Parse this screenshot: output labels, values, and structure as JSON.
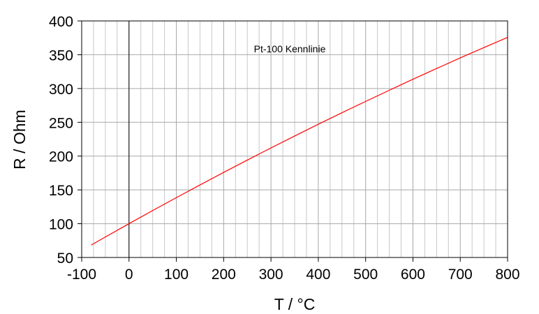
{
  "chart_data": {
    "type": "line",
    "title": "Pt-100 Kennlinie",
    "xlabel": "T / °C",
    "ylabel": "R / Ohm",
    "xlim": [
      -100,
      800
    ],
    "ylim": [
      50,
      400
    ],
    "x_ticks": [
      -100,
      0,
      100,
      200,
      300,
      400,
      500,
      600,
      700,
      800
    ],
    "y_ticks": [
      50,
      100,
      150,
      200,
      250,
      300,
      350,
      400
    ],
    "x_tick_labels": [
      "-100",
      "0",
      "100",
      "200",
      "300",
      "400",
      "500",
      "600",
      "700",
      "800"
    ],
    "y_tick_labels": [
      "50",
      "100",
      "150",
      "200",
      "250",
      "300",
      "350",
      "400"
    ],
    "x_minor_step": 25,
    "grid": true,
    "zero_line": 0,
    "series": [
      {
        "color": "#ff0000",
        "x": [
          -80,
          -50,
          0,
          50,
          100,
          150,
          200,
          250,
          300,
          350,
          400,
          450,
          500,
          550,
          600,
          650,
          700,
          750,
          800
        ],
        "y": [
          68.3,
          80.3,
          100.0,
          119.4,
          138.5,
          157.3,
          175.9,
          194.1,
          212.1,
          229.7,
          247.1,
          264.2,
          280.9,
          297.4,
          313.7,
          329.6,
          345.3,
          360.6,
          375.7
        ]
      }
    ]
  }
}
